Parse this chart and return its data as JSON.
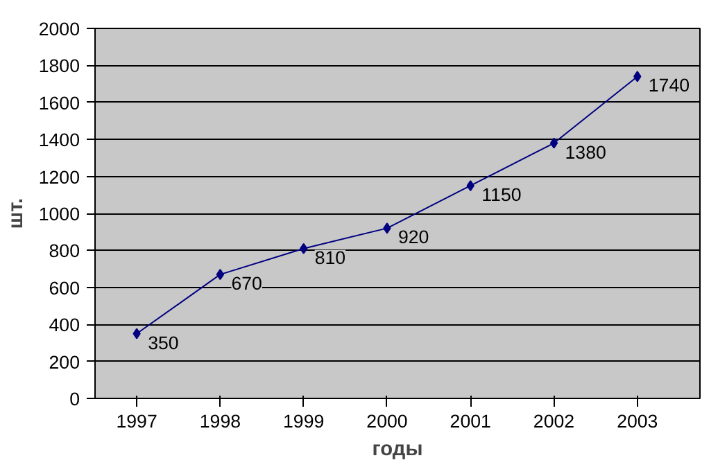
{
  "chart_data": {
    "type": "line",
    "xlabel": "годы",
    "ylabel": "шт.",
    "categories": [
      "1997",
      "1998",
      "1999",
      "2000",
      "2001",
      "2002",
      "2003"
    ],
    "values": [
      350,
      670,
      810,
      920,
      1150,
      1380,
      1740
    ],
    "color": "#000080",
    "marker": "diamond",
    "line_style": "solid",
    "data_labels": true,
    "ylim": [
      0,
      2000
    ],
    "yticks": [
      0,
      200,
      400,
      600,
      800,
      1000,
      1200,
      1400,
      1600,
      1800,
      2000
    ],
    "grid": "y"
  }
}
